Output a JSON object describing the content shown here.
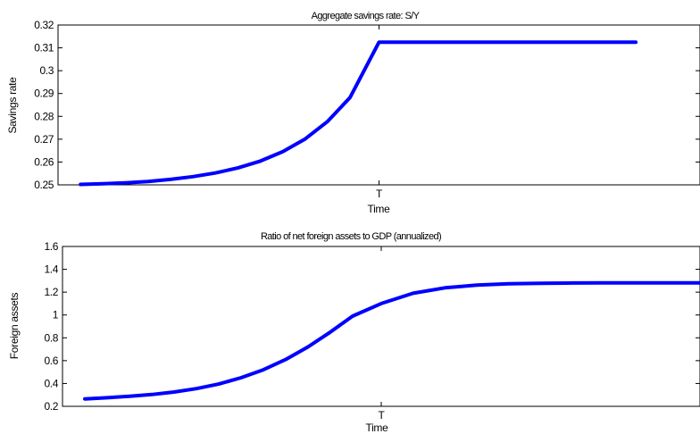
{
  "chart_data": [
    {
      "type": "line",
      "title": "Aggregate savings rate: S/Y",
      "xlabel": "Time",
      "ylabel": "Savings rate",
      "ylim": [
        0.25,
        0.32
      ],
      "yticks": [
        "0.32",
        "0.31",
        "0.3",
        "0.29",
        "0.28",
        "0.27",
        "0.26",
        "0.25"
      ],
      "xticks": [
        {
          "label": "T",
          "x": 0.5
        }
      ],
      "xlim": [
        0,
        1
      ],
      "series": [
        {
          "color": "#0000ff",
          "x": [
            0.035,
            0.07,
            0.105,
            0.14,
            0.175,
            0.21,
            0.245,
            0.28,
            0.315,
            0.35,
            0.385,
            0.42,
            0.455,
            0.5,
            0.55,
            0.6,
            0.65,
            0.7,
            0.75,
            0.8,
            0.85,
            0.9
          ],
          "y": [
            0.2502,
            0.2505,
            0.2509,
            0.2515,
            0.2524,
            0.2536,
            0.2552,
            0.2574,
            0.2604,
            0.2645,
            0.2701,
            0.2778,
            0.2883,
            0.3125,
            0.3125,
            0.3125,
            0.3125,
            0.3125,
            0.3125,
            0.3125,
            0.3125,
            0.3125
          ]
        }
      ]
    },
    {
      "type": "line",
      "title": "Ratio of net foreign assets to GDP (annualized)",
      "xlabel": "Time",
      "ylabel": "Foreign assets",
      "ylim": [
        0.2,
        1.6
      ],
      "yticks": [
        "1.6",
        "1.4",
        "1.2",
        "1",
        "0.8",
        "0.6",
        "0.4",
        "0.2"
      ],
      "xticks": [
        {
          "label": "T",
          "x": 0.5
        }
      ],
      "xlim": [
        0,
        1
      ],
      "series": [
        {
          "color": "#0000ff",
          "x": [
            0.035,
            0.07,
            0.105,
            0.14,
            0.175,
            0.21,
            0.245,
            0.28,
            0.315,
            0.35,
            0.385,
            0.42,
            0.455,
            0.5,
            0.55,
            0.6,
            0.65,
            0.7,
            0.75,
            0.8,
            0.85,
            0.9,
            1.0
          ],
          "y": [
            0.265,
            0.275,
            0.288,
            0.303,
            0.325,
            0.355,
            0.395,
            0.45,
            0.52,
            0.61,
            0.72,
            0.85,
            0.99,
            1.1,
            1.19,
            1.238,
            1.262,
            1.273,
            1.278,
            1.28,
            1.281,
            1.282,
            1.282
          ]
        }
      ]
    }
  ]
}
